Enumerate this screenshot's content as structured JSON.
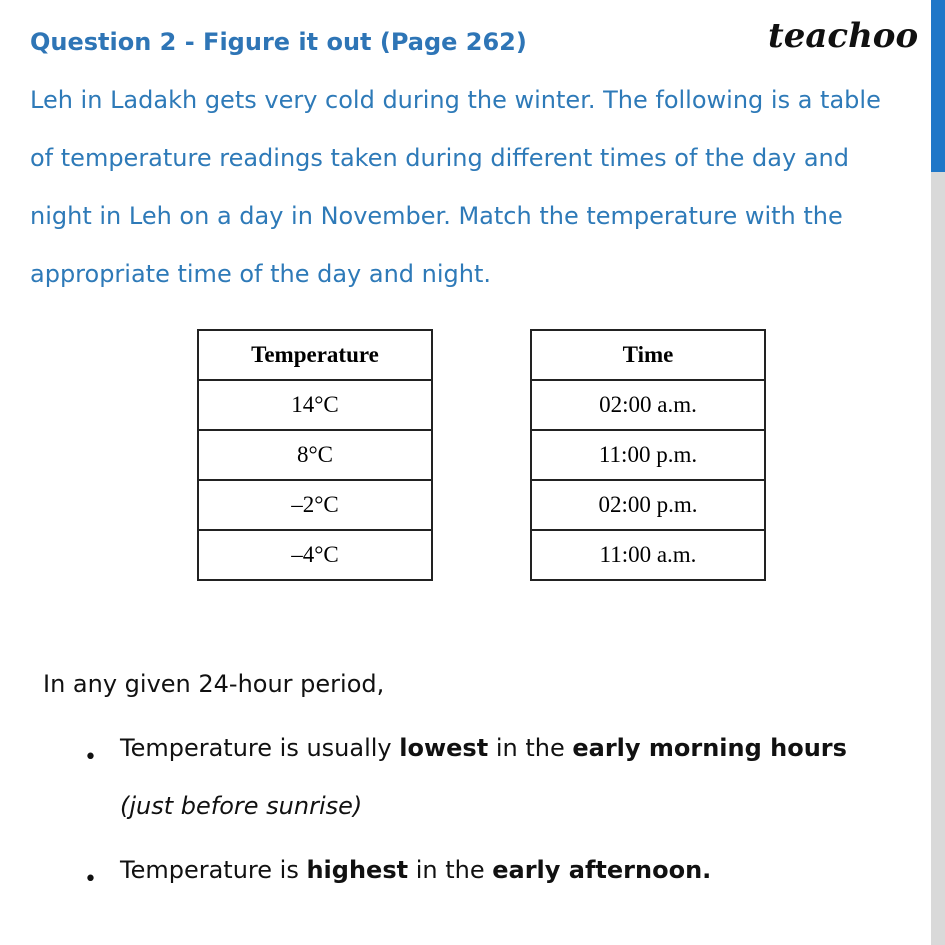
{
  "header": {
    "title": "Question 2 - Figure it out (Page 262)",
    "brand": "teachoo"
  },
  "question": {
    "lines": [
      "Leh in Ladakh gets very cold during the winter. The following is a table",
      "of temperature readings taken during different times of the day and",
      "night in Leh on a day in November. Match the temperature with the",
      "appropriate time of the day and night."
    ]
  },
  "tables": [
    {
      "header": "Temperature",
      "rows": [
        "14°C",
        "8°C",
        "–2°C",
        "–4°C"
      ]
    },
    {
      "header": "Time",
      "rows": [
        "02:00 a.m.",
        "11:00 p.m.",
        "02:00 p.m.",
        "11:00 a.m."
      ]
    }
  ],
  "intro": "In any given 24-hour period,",
  "bullets": [
    {
      "runs": [
        {
          "text": "Temperature is usually ",
          "style": "normal"
        },
        {
          "text": "lowest",
          "style": "bold"
        },
        {
          "text": " in the ",
          "style": "normal"
        },
        {
          "text": "early morning hours",
          "style": "bold"
        },
        {
          "text": "(just before sunrise)",
          "style": "italic"
        }
      ]
    },
    {
      "runs": [
        {
          "text": "Temperature is ",
          "style": "normal"
        },
        {
          "text": "highest",
          "style": "bold"
        },
        {
          "text": " in the ",
          "style": "normal"
        },
        {
          "text": "early afternoon.",
          "style": "bold"
        }
      ]
    }
  ]
}
